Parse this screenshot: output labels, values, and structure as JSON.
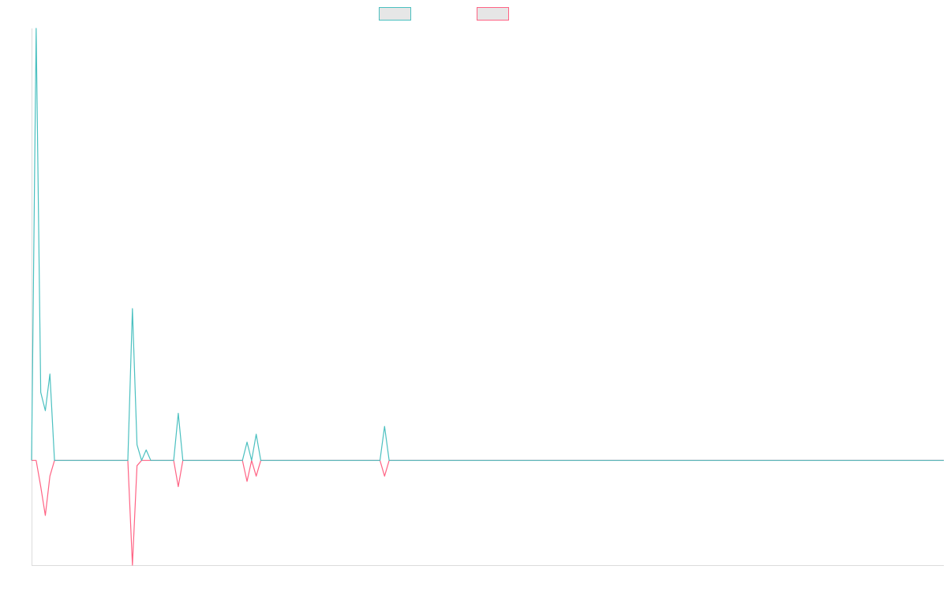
{
  "chart_data": {
    "type": "line",
    "title": "",
    "xlabel": "",
    "ylabel": "",
    "x_count": 200,
    "ylim": [
      -40,
      165
    ],
    "grid": false,
    "legend_position": "top-center",
    "colors": {
      "series_a": "#4bc0c0",
      "series_b": "#ff6384",
      "legend_fill": "#e6e6e6"
    },
    "series": [
      {
        "key": "a",
        "name": "",
        "color": "#4bc0c0",
        "values": [
          0,
          165,
          26,
          19,
          33,
          0,
          0,
          0,
          0,
          0,
          0,
          0,
          0,
          0,
          0,
          0,
          0,
          0,
          0,
          0,
          0,
          0,
          58,
          6,
          0,
          4,
          0,
          0,
          0,
          0,
          0,
          0,
          18,
          0,
          0,
          0,
          0,
          0,
          0,
          0,
          0,
          0,
          0,
          0,
          0,
          0,
          0,
          7,
          0,
          10,
          0,
          0,
          0,
          0,
          0,
          0,
          0,
          0,
          0,
          0,
          0,
          0,
          0,
          0,
          0,
          0,
          0,
          0,
          0,
          0,
          0,
          0,
          0,
          0,
          0,
          0,
          0,
          13,
          0,
          0,
          0,
          0,
          0,
          0,
          0,
          0,
          0,
          0,
          0,
          0,
          0,
          0,
          0,
          0,
          0,
          0,
          0,
          0,
          0,
          0,
          0,
          0,
          0,
          0,
          0,
          0,
          0,
          0,
          0,
          0,
          0,
          0,
          0,
          0,
          0,
          0,
          0,
          0,
          0,
          0,
          0,
          0,
          0,
          0,
          0,
          0,
          0,
          0,
          0,
          0,
          0,
          0,
          0,
          0,
          0,
          0,
          0,
          0,
          0,
          0,
          0,
          0,
          0,
          0,
          0,
          0,
          0,
          0,
          0,
          0,
          0,
          0,
          0,
          0,
          0,
          0,
          0,
          0,
          0,
          0,
          0,
          0,
          0,
          0,
          0,
          0,
          0,
          0,
          0,
          0,
          0,
          0,
          0,
          0,
          0,
          0,
          0,
          0,
          0,
          0,
          0,
          0,
          0,
          0,
          0,
          0,
          0,
          0,
          0,
          0,
          0,
          0,
          0,
          0,
          0,
          0,
          0,
          0,
          0,
          0
        ]
      },
      {
        "key": "b",
        "name": "",
        "color": "#ff6384",
        "values": [
          0,
          0,
          -10,
          -21,
          -6,
          0,
          0,
          0,
          0,
          0,
          0,
          0,
          0,
          0,
          0,
          0,
          0,
          0,
          0,
          0,
          0,
          0,
          -40,
          -2,
          0,
          0,
          0,
          0,
          0,
          0,
          0,
          0,
          -10,
          0,
          0,
          0,
          0,
          0,
          0,
          0,
          0,
          0,
          0,
          0,
          0,
          0,
          0,
          -8,
          0,
          -6,
          0,
          0,
          0,
          0,
          0,
          0,
          0,
          0,
          0,
          0,
          0,
          0,
          0,
          0,
          0,
          0,
          0,
          0,
          0,
          0,
          0,
          0,
          0,
          0,
          0,
          0,
          0,
          -6,
          0,
          0,
          0,
          0,
          0,
          0,
          0,
          0,
          0,
          0,
          0,
          0,
          0,
          0,
          0,
          0,
          0,
          0,
          0,
          0,
          0,
          0,
          0,
          0,
          0,
          0,
          0,
          0,
          0,
          0,
          0,
          0,
          0,
          0,
          0,
          0,
          0,
          0,
          0,
          0,
          0,
          0,
          0,
          0,
          0,
          0,
          0,
          0,
          0,
          0,
          0,
          0,
          0,
          0,
          0,
          0,
          0,
          0,
          0,
          0,
          0,
          0,
          0,
          0,
          0,
          0,
          0,
          0,
          0,
          0,
          0,
          0,
          0,
          0,
          0,
          0,
          0,
          0,
          0,
          0,
          0,
          0,
          0,
          0,
          0,
          0,
          0,
          0,
          0,
          0,
          0,
          0,
          0,
          0,
          0,
          0,
          0,
          0,
          0,
          0,
          0,
          0,
          0,
          0,
          0,
          0,
          0,
          0,
          0,
          0,
          0,
          0,
          0,
          0,
          0,
          0,
          0,
          0,
          0,
          0,
          0,
          0
        ]
      }
    ]
  }
}
